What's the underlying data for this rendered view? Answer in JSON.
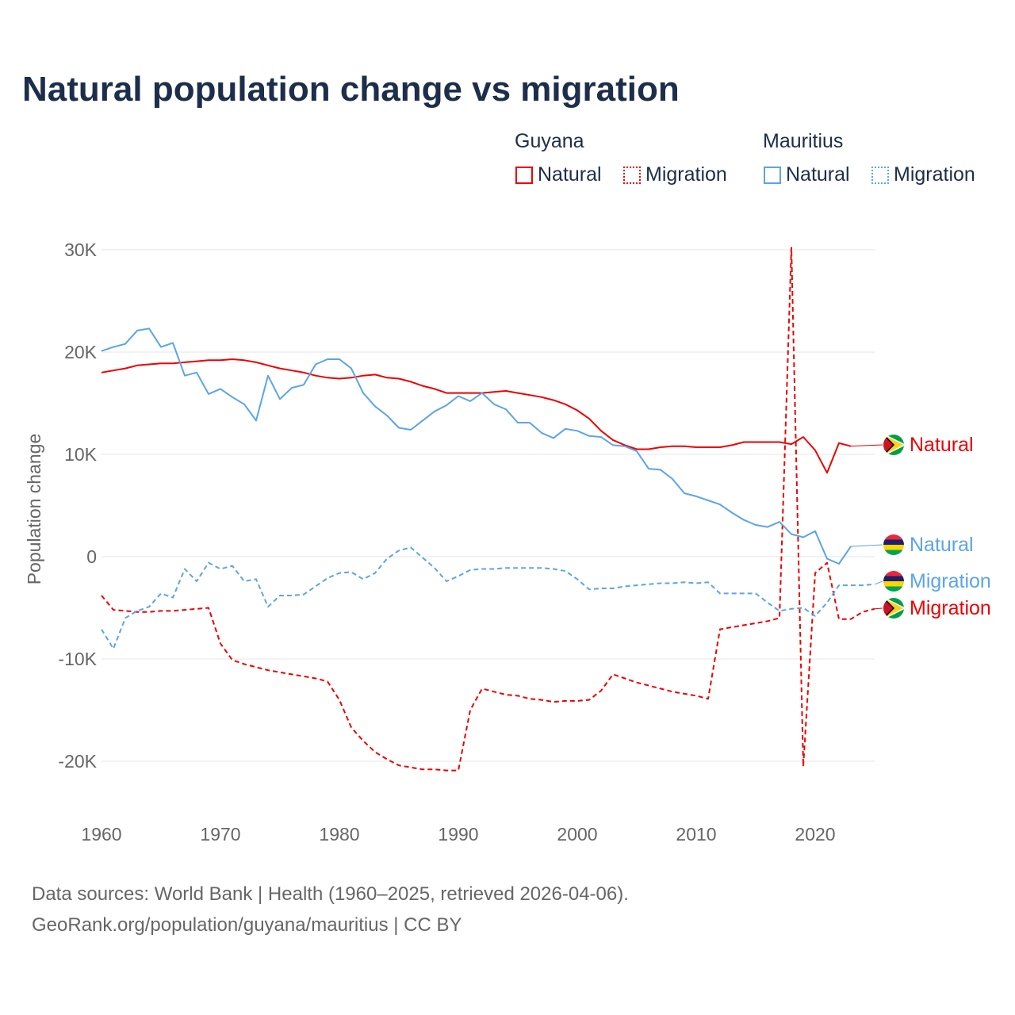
{
  "chart_data": {
    "type": "line",
    "title": "Natural population change vs migration",
    "xlabel": "",
    "ylabel": "Population change",
    "xlim": [
      1960,
      2025
    ],
    "ylim": [
      -20000,
      30000
    ],
    "x_ticks": [
      1960,
      1970,
      1980,
      1990,
      2000,
      2010,
      2020
    ],
    "y_ticks": [
      {
        "v": 30000,
        "label": "30K"
      },
      {
        "v": 20000,
        "label": "20K"
      },
      {
        "v": 10000,
        "label": "10K"
      },
      {
        "v": 0,
        "label": "0"
      },
      {
        "v": -10000,
        "label": "-10K"
      },
      {
        "v": -20000,
        "label": "-20K"
      }
    ],
    "grid": true,
    "legend_placement": "top-right",
    "legend_groups": [
      {
        "country": "Guyana",
        "items": [
          "Natural",
          "Migration"
        ]
      },
      {
        "country": "Mauritius",
        "items": [
          "Natural",
          "Migration"
        ]
      }
    ],
    "x_start": 1960,
    "series": [
      {
        "name": "Guyana Natural",
        "country": "Guyana",
        "label": "Natural",
        "color": "#ee0000",
        "dash": false,
        "values": [
          18000,
          18200,
          18400,
          18700,
          18800,
          18900,
          18900,
          19000,
          19100,
          19200,
          19200,
          19300,
          19200,
          19000,
          18700,
          18400,
          18200,
          18000,
          17700,
          17500,
          17400,
          17500,
          17700,
          17800,
          17500,
          17400,
          17100,
          16700,
          16400,
          16000,
          16000,
          16000,
          16000,
          16100,
          16200,
          16000,
          15800,
          15600,
          15300,
          14900,
          14300,
          13500,
          12300,
          11400,
          10900,
          10500,
          10500,
          10700,
          10800,
          10800,
          10700,
          10700,
          10700,
          10900,
          11200,
          11200,
          11200,
          11200,
          11000,
          11700,
          10400,
          8200,
          11100,
          10800
        ]
      },
      {
        "name": "Guyana Migration",
        "country": "Guyana",
        "label": "Migration",
        "color": "#ee0000",
        "dash": true,
        "values": [
          -3800,
          -5200,
          -5300,
          -5400,
          -5400,
          -5300,
          -5300,
          -5200,
          -5100,
          -5000,
          -8500,
          -10100,
          -10500,
          -10800,
          -11100,
          -11300,
          -11500,
          -11700,
          -11900,
          -12200,
          -14000,
          -16700,
          -18000,
          -19100,
          -19800,
          -20400,
          -20600,
          -20800,
          -20800,
          -20900,
          -20900,
          -15000,
          -12900,
          -13200,
          -13500,
          -13600,
          -13900,
          -14000,
          -14200,
          -14100,
          -14100,
          -14000,
          -13100,
          -11500,
          -11900,
          -12300,
          -12600,
          -12900,
          -13200,
          -13400,
          -13600,
          -13900,
          -7100,
          -6900,
          -6700,
          -6500,
          -6300,
          -6000,
          30200,
          -20500,
          -1600,
          -600,
          -6100,
          -6100,
          -5400,
          -5100
        ]
      },
      {
        "name": "Mauritius Natural",
        "country": "Mauritius",
        "label": "Natural",
        "color": "#5ba4e8",
        "dash": false,
        "values": [
          20100,
          20500,
          20800,
          22100,
          22300,
          20500,
          20900,
          17700,
          18000,
          15900,
          16400,
          15600,
          14900,
          13300,
          17700,
          15400,
          16500,
          16800,
          18800,
          19300,
          19300,
          18400,
          16000,
          14700,
          13800,
          12600,
          12400,
          13300,
          14200,
          14800,
          15700,
          15200,
          16000,
          14900,
          14400,
          13100,
          13100,
          12100,
          11600,
          12500,
          12300,
          11800,
          11700,
          10900,
          10800,
          10300,
          8600,
          8500,
          7600,
          6200,
          5900,
          5500,
          5100,
          4300,
          3600,
          3100,
          2900,
          3400,
          2200,
          1900,
          2500,
          -200,
          -700,
          1000
        ]
      },
      {
        "name": "Mauritius Migration",
        "country": "Mauritius",
        "label": "Migration",
        "color": "#5ba4e8",
        "dash": true,
        "values": [
          -7100,
          -9000,
          -6000,
          -5300,
          -4900,
          -3600,
          -4000,
          -1200,
          -2400,
          -600,
          -1200,
          -900,
          -2400,
          -2200,
          -4900,
          -3800,
          -3800,
          -3700,
          -2900,
          -2100,
          -1600,
          -1500,
          -2200,
          -1600,
          -200,
          600,
          900,
          -100,
          -1100,
          -2400,
          -1900,
          -1300,
          -1200,
          -1200,
          -1100,
          -1100,
          -1100,
          -1100,
          -1200,
          -1400,
          -2200,
          -3200,
          -3100,
          -3100,
          -2900,
          -2800,
          -2700,
          -2600,
          -2600,
          -2500,
          -2600,
          -2500,
          -3600,
          -3600,
          -3600,
          -3600,
          -4500,
          -5300,
          -5100,
          -5000,
          -5800,
          -4500,
          -2800,
          -2800,
          -2800,
          -2700
        ]
      }
    ],
    "end_labels": [
      {
        "text": "Natural",
        "series": 0,
        "flag": "guyana"
      },
      {
        "text": "Natural",
        "series": 2,
        "flag": "mauritius"
      },
      {
        "text": "Migration",
        "series": 3,
        "flag": "mauritius"
      },
      {
        "text": "Migration",
        "series": 1,
        "flag": "guyana"
      }
    ]
  },
  "footer": {
    "line1": "Data sources: World Bank | Health (1960–2025, retrieved 2026-04-06).",
    "line2": "GeoRank.org/population/guyana/mauritius | CC BY"
  }
}
